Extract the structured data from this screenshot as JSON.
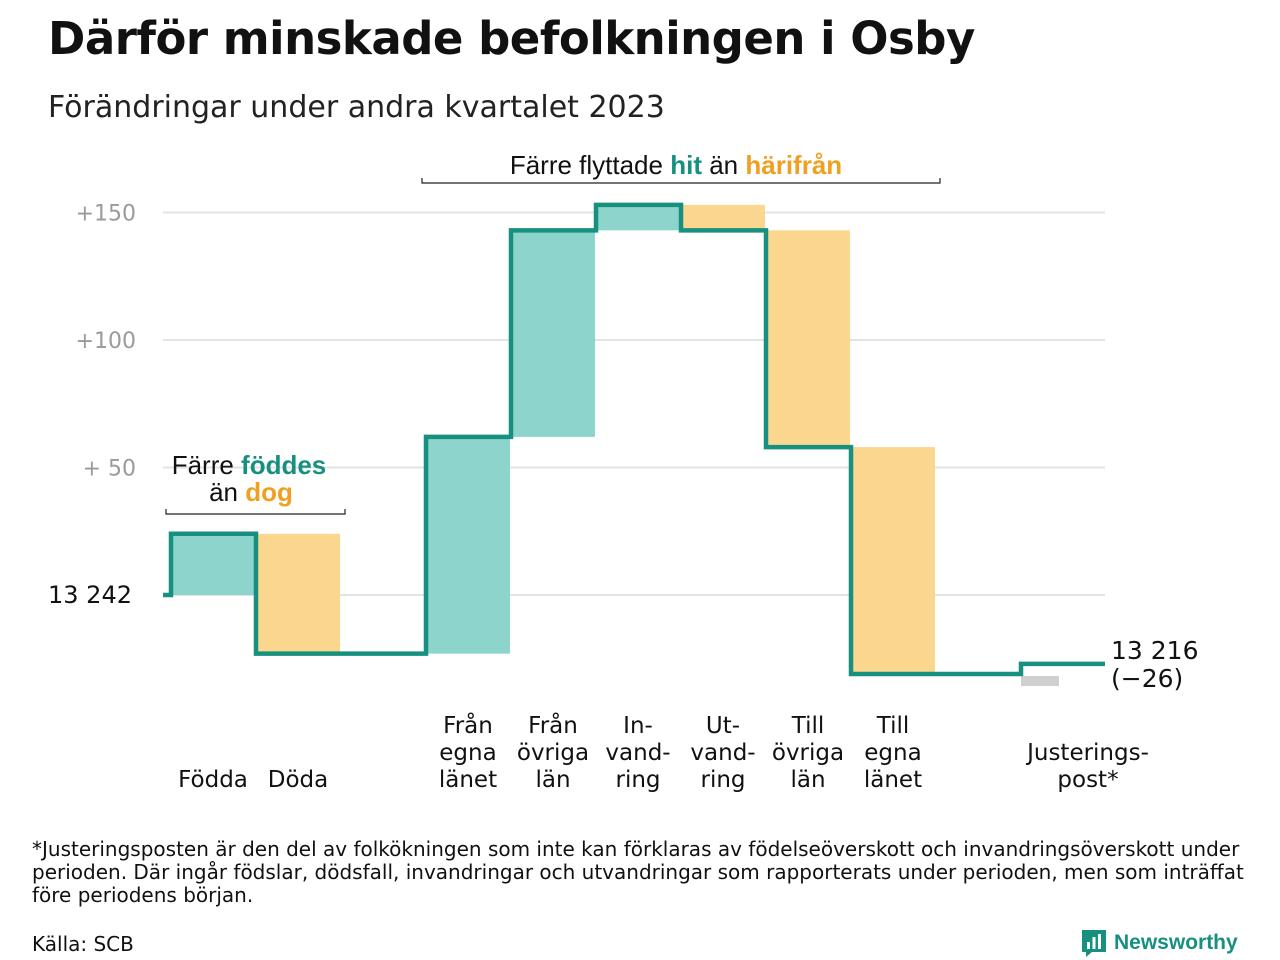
{
  "header": {
    "title": "Därför minskade befolkningen i Osby",
    "subtitle": "Förändringar under andra kvartalet 2023"
  },
  "colors": {
    "in_fill": "#8dd5cc",
    "out_fill": "#fbd68f",
    "line": "#17907f",
    "adjust_fill": "#cfcfcf",
    "grid": "#e3e3e3",
    "tick_text": "#9a9a9a",
    "accent_in": "#17907f",
    "accent_out": "#f0a020"
  },
  "chart_data": {
    "type": "waterfall",
    "baseline_label": "13  242",
    "end_label": [
      "13 216",
      "(−26)"
    ],
    "y_ticks": [
      {
        "value": 150,
        "label": "+150"
      },
      {
        "value": 100,
        "label": "+100"
      },
      {
        "value": 50,
        "label": "+  50"
      },
      {
        "value": 0,
        "label": ""
      }
    ],
    "ylim": [
      -30,
      160
    ],
    "steps": [
      {
        "label": [
          "Födda"
        ],
        "delta": 24,
        "kind": "in"
      },
      {
        "label": [
          "Döda"
        ],
        "delta": -47,
        "kind": "out"
      },
      {
        "label": [],
        "delta": 0,
        "kind": "gap"
      },
      {
        "label": [
          "Från",
          "egna",
          "länet"
        ],
        "delta": 85,
        "kind": "in"
      },
      {
        "label": [
          "Från",
          "övriga",
          "län"
        ],
        "delta": 81,
        "kind": "in"
      },
      {
        "label": [
          "In-",
          "vand-",
          "ring"
        ],
        "delta": 10,
        "kind": "in"
      },
      {
        "label": [
          "Ut-",
          "vand-",
          "ring"
        ],
        "delta": -10,
        "kind": "out"
      },
      {
        "label": [
          "Till",
          "övriga",
          "län"
        ],
        "delta": -85,
        "kind": "out"
      },
      {
        "label": [
          "Till",
          "egna",
          "länet"
        ],
        "delta": -89,
        "kind": "out"
      },
      {
        "label": [],
        "delta": 0,
        "kind": "gap"
      },
      {
        "label": [
          "Justerings-",
          "post*"
        ],
        "delta": 4,
        "kind": "adjust"
      }
    ],
    "annotations": [
      {
        "parts": [
          {
            "text": "Färre ",
            "role": "plain"
          },
          {
            "text": "föddes",
            "role": "in"
          }
        ],
        "parts2": [
          {
            "text": "än ",
            "role": "plain"
          },
          {
            "text": "dog",
            "role": "out"
          }
        ]
      },
      {
        "parts": [
          {
            "text": "Färre flyttade ",
            "role": "plain"
          },
          {
            "text": "hit",
            "role": "in"
          },
          {
            "text": " än ",
            "role": "plain"
          },
          {
            "text": "härifrån",
            "role": "out"
          }
        ]
      }
    ]
  },
  "footer": {
    "footnote": "*Justeringsposten är den del av folkökningen som inte kan förklaras av födelseöverskott och invandringsöverskott under perioden. Där ingår födslar, dödsfall, invandringar och utvandringar som rapporterats under perioden, men som inträffat före periodens början.",
    "source": "Källa: SCB",
    "brand": "Newsworthy",
    "brand_icon": "bar-chart-icon"
  }
}
